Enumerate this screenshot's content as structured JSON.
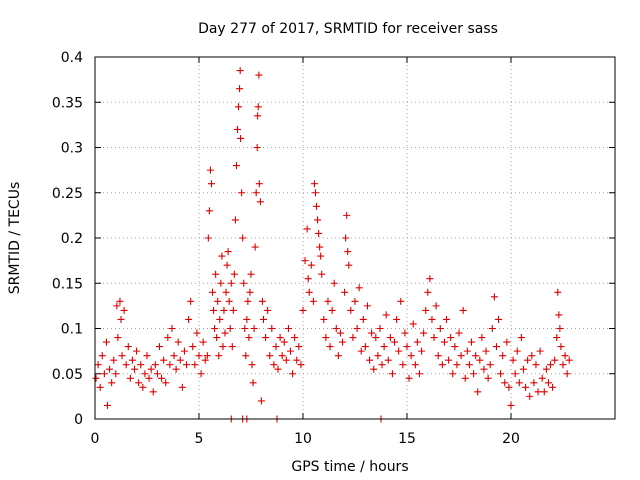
{
  "chart_data": {
    "type": "scatter",
    "title": "Day 277 of 2017, SRMTID for receiver sass",
    "xlabel": "GPS time / hours",
    "ylabel": "SRMTID / TECUs",
    "xlim": [
      0,
      25
    ],
    "ylim": [
      0,
      0.4
    ],
    "x_ticks": [
      0,
      5,
      10,
      15,
      20
    ],
    "x_tick_labels": [
      "0",
      "5",
      "10",
      "15",
      "20"
    ],
    "y_ticks": [
      0,
      0.05,
      0.1,
      0.15,
      0.2,
      0.25,
      0.3,
      0.35,
      0.4
    ],
    "y_tick_labels": [
      "0",
      "0.05",
      "0.1",
      "0.15",
      "0.2",
      "0.25",
      "0.3",
      "0.35",
      "0.4"
    ],
    "grid": true,
    "marker": "+",
    "marker_color": "#e00000",
    "series": [
      {
        "name": "SRMTID",
        "points": [
          [
            0.05,
            0.045
          ],
          [
            0.15,
            0.06
          ],
          [
            0.25,
            0.035
          ],
          [
            0.35,
            0.07
          ],
          [
            0.45,
            0.05
          ],
          [
            0.55,
            0.085
          ],
          [
            0.6,
            0.015
          ],
          [
            0.7,
            0.055
          ],
          [
            0.8,
            0.04
          ],
          [
            0.9,
            0.065
          ],
          [
            1.0,
            0.05
          ],
          [
            1.05,
            0.125
          ],
          [
            1.1,
            0.09
          ],
          [
            1.2,
            0.13
          ],
          [
            1.25,
            0.11
          ],
          [
            1.3,
            0.07
          ],
          [
            1.4,
            0.12
          ],
          [
            1.5,
            0.06
          ],
          [
            1.6,
            0.08
          ],
          [
            1.7,
            0.045
          ],
          [
            1.8,
            0.065
          ],
          [
            1.9,
            0.055
          ],
          [
            2.0,
            0.075
          ],
          [
            2.1,
            0.04
          ],
          [
            2.2,
            0.06
          ],
          [
            2.3,
            0.035
          ],
          [
            2.4,
            0.05
          ],
          [
            2.5,
            0.07
          ],
          [
            2.6,
            0.045
          ],
          [
            2.7,
            0.055
          ],
          [
            2.8,
            0.03
          ],
          [
            2.9,
            0.06
          ],
          [
            3.0,
            0.05
          ],
          [
            3.1,
            0.08
          ],
          [
            3.2,
            0.045
          ],
          [
            3.3,
            0.065
          ],
          [
            3.4,
            0.04
          ],
          [
            3.5,
            0.09
          ],
          [
            3.6,
            0.06
          ],
          [
            3.7,
            0.1
          ],
          [
            3.8,
            0.07
          ],
          [
            3.9,
            0.055
          ],
          [
            4.0,
            0.085
          ],
          [
            4.1,
            0.065
          ],
          [
            4.2,
            0.035
          ],
          [
            4.3,
            0.075
          ],
          [
            4.4,
            0.06
          ],
          [
            4.5,
            0.11
          ],
          [
            4.6,
            0.13
          ],
          [
            4.7,
            0.08
          ],
          [
            4.8,
            0.06
          ],
          [
            4.9,
            0.095
          ],
          [
            5.0,
            0.07
          ],
          [
            5.1,
            0.05
          ],
          [
            5.2,
            0.085
          ],
          [
            5.3,
            0.065
          ],
          [
            5.4,
            0.07
          ],
          [
            5.45,
            0.2
          ],
          [
            5.5,
            0.23
          ],
          [
            5.55,
            0.275
          ],
          [
            5.6,
            0.26
          ],
          [
            5.65,
            0.14
          ],
          [
            5.7,
            0.12
          ],
          [
            5.75,
            0.1
          ],
          [
            5.8,
            0.16
          ],
          [
            5.85,
            0.09
          ],
          [
            5.9,
            0.13
          ],
          [
            5.95,
            0.07
          ],
          [
            6.0,
            0.11
          ],
          [
            6.05,
            0.15
          ],
          [
            6.1,
            0.18
          ],
          [
            6.15,
            0.08
          ],
          [
            6.2,
            0.12
          ],
          [
            6.25,
            0.095
          ],
          [
            6.3,
            0.14
          ],
          [
            6.35,
            0.17
          ],
          [
            6.4,
            0.185
          ],
          [
            6.45,
            0.13
          ],
          [
            6.5,
            0.1
          ],
          [
            6.55,
            0.15
          ],
          [
            6.6,
            0.08
          ],
          [
            6.65,
            0.12
          ],
          [
            6.7,
            0.16
          ],
          [
            6.75,
            0.22
          ],
          [
            6.8,
            0.28
          ],
          [
            6.85,
            0.32
          ],
          [
            6.9,
            0.345
          ],
          [
            6.95,
            0.365
          ],
          [
            6.98,
            0.385
          ],
          [
            7.0,
            0.31
          ],
          [
            7.05,
            0.25
          ],
          [
            7.1,
            0.2
          ],
          [
            7.15,
            0.15
          ],
          [
            7.2,
            0.1
          ],
          [
            7.25,
            0.07
          ],
          [
            7.3,
            0.11
          ],
          [
            7.35,
            0.13
          ],
          [
            7.4,
            0.09
          ],
          [
            7.45,
            0.14
          ],
          [
            7.5,
            0.16
          ],
          [
            7.55,
            0.06
          ],
          [
            7.6,
            0.04
          ],
          [
            7.65,
            0.1
          ],
          [
            7.7,
            0.19
          ],
          [
            7.75,
            0.25
          ],
          [
            7.8,
            0.3
          ],
          [
            7.82,
            0.335
          ],
          [
            7.85,
            0.345
          ],
          [
            7.88,
            0.38
          ],
          [
            7.9,
            0.26
          ],
          [
            7.95,
            0.24
          ],
          [
            8.0,
            0.02
          ],
          [
            8.05,
            0.13
          ],
          [
            8.1,
            0.11
          ],
          [
            8.2,
            0.09
          ],
          [
            8.3,
            0.12
          ],
          [
            8.4,
            0.07
          ],
          [
            8.5,
            0.1
          ],
          [
            8.6,
            0.06
          ],
          [
            8.7,
            0.08
          ],
          [
            8.8,
            0.055
          ],
          [
            8.9,
            0.09
          ],
          [
            9.0,
            0.07
          ],
          [
            9.1,
            0.085
          ],
          [
            9.2,
            0.065
          ],
          [
            9.3,
            0.1
          ],
          [
            9.4,
            0.075
          ],
          [
            9.5,
            0.05
          ],
          [
            9.6,
            0.09
          ],
          [
            9.7,
            0.065
          ],
          [
            9.8,
            0.08
          ],
          [
            9.9,
            0.06
          ],
          [
            10.0,
            0.12
          ],
          [
            10.1,
            0.175
          ],
          [
            10.2,
            0.21
          ],
          [
            10.25,
            0.155
          ],
          [
            10.3,
            0.14
          ],
          [
            10.4,
            0.17
          ],
          [
            10.5,
            0.13
          ],
          [
            10.55,
            0.26
          ],
          [
            10.6,
            0.25
          ],
          [
            10.65,
            0.235
          ],
          [
            10.7,
            0.22
          ],
          [
            10.75,
            0.205
          ],
          [
            10.8,
            0.19
          ],
          [
            10.85,
            0.18
          ],
          [
            10.9,
            0.16
          ],
          [
            11.0,
            0.11
          ],
          [
            11.1,
            0.09
          ],
          [
            11.2,
            0.13
          ],
          [
            11.3,
            0.08
          ],
          [
            11.4,
            0.12
          ],
          [
            11.5,
            0.15
          ],
          [
            11.6,
            0.1
          ],
          [
            11.7,
            0.07
          ],
          [
            11.8,
            0.095
          ],
          [
            11.9,
            0.085
          ],
          [
            12.0,
            0.14
          ],
          [
            12.05,
            0.2
          ],
          [
            12.1,
            0.225
          ],
          [
            12.15,
            0.185
          ],
          [
            12.2,
            0.17
          ],
          [
            12.3,
            0.12
          ],
          [
            12.4,
            0.09
          ],
          [
            12.5,
            0.13
          ],
          [
            12.6,
            0.1
          ],
          [
            12.7,
            0.145
          ],
          [
            12.8,
            0.075
          ],
          [
            12.9,
            0.11
          ],
          [
            13.0,
            0.08
          ],
          [
            13.1,
            0.125
          ],
          [
            13.2,
            0.065
          ],
          [
            13.3,
            0.095
          ],
          [
            13.4,
            0.055
          ],
          [
            13.5,
            0.09
          ],
          [
            13.6,
            0.07
          ],
          [
            13.7,
            0.1
          ],
          [
            13.8,
            0.06
          ],
          [
            13.9,
            0.08
          ],
          [
            14.0,
            0.115
          ],
          [
            14.1,
            0.065
          ],
          [
            14.2,
            0.09
          ],
          [
            14.3,
            0.05
          ],
          [
            14.4,
            0.085
          ],
          [
            14.5,
            0.11
          ],
          [
            14.6,
            0.075
          ],
          [
            14.7,
            0.13
          ],
          [
            14.8,
            0.06
          ],
          [
            14.9,
            0.095
          ],
          [
            15.0,
            0.08
          ],
          [
            15.1,
            0.045
          ],
          [
            15.2,
            0.07
          ],
          [
            15.3,
            0.105
          ],
          [
            15.4,
            0.06
          ],
          [
            15.5,
            0.085
          ],
          [
            15.6,
            0.05
          ],
          [
            15.7,
            0.075
          ],
          [
            15.8,
            0.095
          ],
          [
            15.9,
            0.12
          ],
          [
            16.0,
            0.14
          ],
          [
            16.1,
            0.155
          ],
          [
            16.2,
            0.11
          ],
          [
            16.3,
            0.09
          ],
          [
            16.4,
            0.125
          ],
          [
            16.5,
            0.07
          ],
          [
            16.6,
            0.1
          ],
          [
            16.7,
            0.06
          ],
          [
            16.8,
            0.085
          ],
          [
            16.9,
            0.11
          ],
          [
            17.0,
            0.065
          ],
          [
            17.1,
            0.09
          ],
          [
            17.2,
            0.05
          ],
          [
            17.3,
            0.08
          ],
          [
            17.4,
            0.06
          ],
          [
            17.5,
            0.095
          ],
          [
            17.6,
            0.07
          ],
          [
            17.7,
            0.12
          ],
          [
            17.8,
            0.045
          ],
          [
            17.9,
            0.075
          ],
          [
            18.0,
            0.06
          ],
          [
            18.1,
            0.085
          ],
          [
            18.2,
            0.05
          ],
          [
            18.3,
            0.07
          ],
          [
            18.4,
            0.03
          ],
          [
            18.5,
            0.065
          ],
          [
            18.6,
            0.09
          ],
          [
            18.7,
            0.055
          ],
          [
            18.8,
            0.075
          ],
          [
            18.9,
            0.045
          ],
          [
            19.0,
            0.06
          ],
          [
            19.1,
            0.1
          ],
          [
            19.2,
            0.135
          ],
          [
            19.3,
            0.08
          ],
          [
            19.4,
            0.11
          ],
          [
            19.5,
            0.05
          ],
          [
            19.6,
            0.07
          ],
          [
            19.7,
            0.04
          ],
          [
            19.8,
            0.085
          ],
          [
            19.9,
            0.035
          ],
          [
            20.0,
            0.015
          ],
          [
            20.1,
            0.065
          ],
          [
            20.2,
            0.05
          ],
          [
            20.3,
            0.075
          ],
          [
            20.4,
            0.04
          ],
          [
            20.5,
            0.09
          ],
          [
            20.6,
            0.055
          ],
          [
            20.7,
            0.035
          ],
          [
            20.8,
            0.065
          ],
          [
            20.9,
            0.025
          ],
          [
            21.0,
            0.07
          ],
          [
            21.1,
            0.04
          ],
          [
            21.2,
            0.06
          ],
          [
            21.3,
            0.03
          ],
          [
            21.4,
            0.075
          ],
          [
            21.5,
            0.045
          ],
          [
            21.6,
            0.03
          ],
          [
            21.7,
            0.055
          ],
          [
            21.8,
            0.04
          ],
          [
            21.9,
            0.06
          ],
          [
            22.0,
            0.035
          ],
          [
            22.1,
            0.065
          ],
          [
            22.2,
            0.09
          ],
          [
            22.25,
            0.14
          ],
          [
            22.3,
            0.115
          ],
          [
            22.35,
            0.1
          ],
          [
            22.4,
            0.08
          ],
          [
            22.5,
            0.06
          ],
          [
            22.6,
            0.07
          ],
          [
            22.7,
            0.05
          ],
          [
            22.8,
            0.065
          ],
          [
            6.55,
            0.0
          ],
          [
            7.1,
            0.0
          ],
          [
            7.3,
            0.0
          ],
          [
            8.75,
            0.0
          ],
          [
            13.75,
            0.0
          ]
        ]
      }
    ]
  }
}
